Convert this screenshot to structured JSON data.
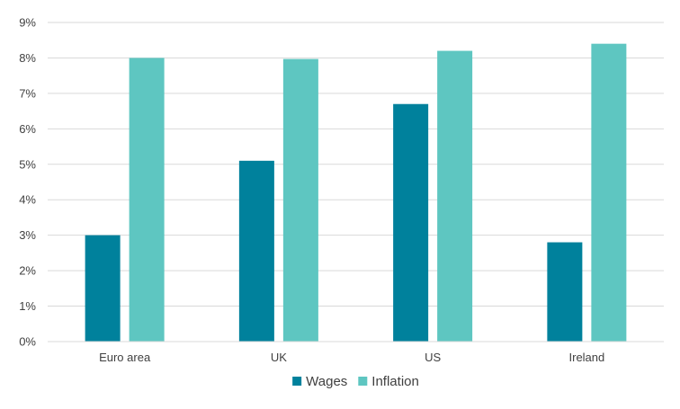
{
  "chart_data": {
    "type": "bar",
    "title": "",
    "xlabel": "",
    "ylabel": "",
    "categories": [
      "Euro area",
      "UK",
      "US",
      "Ireland"
    ],
    "series": [
      {
        "name": "Wages",
        "values": [
          3.0,
          5.1,
          6.7,
          2.8
        ],
        "color": "#00819c"
      },
      {
        "name": "Inflation",
        "values": [
          8.0,
          7.97,
          8.2,
          8.4
        ],
        "color": "#5ec6c1"
      }
    ],
    "ylim": [
      0,
      9
    ],
    "yticks": [
      "0%",
      "1%",
      "2%",
      "3%",
      "4%",
      "5%",
      "6%",
      "7%",
      "8%",
      "9%"
    ],
    "grid": true,
    "legend_position": "bottom"
  }
}
